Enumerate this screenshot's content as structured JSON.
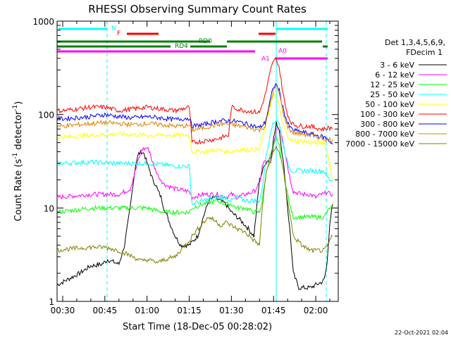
{
  "chart_data": {
    "type": "line",
    "title": "RHESSI Observing Summary Count Rates",
    "xlabel": "Start Time (18-Dec-05 00:28:02)",
    "ylabel_main": "Count Rate (s",
    "ylabel_sup1": "-1",
    "ylabel_mid": " detector",
    "ylabel_sup2": "-1",
    "ylabel_end": ")",
    "x_range_min": [
      28.0,
      128.0
    ],
    "y_log": true,
    "y_range": [
      1,
      1000
    ],
    "x_ticks": [
      {
        "t": 30,
        "label": "00:30"
      },
      {
        "t": 45,
        "label": "00:45"
      },
      {
        "t": 60,
        "label": "01:00"
      },
      {
        "t": 75,
        "label": "01:15"
      },
      {
        "t": 90,
        "label": "01:30"
      },
      {
        "t": 105,
        "label": "01:45"
      },
      {
        "t": 120,
        "label": "02:00"
      }
    ],
    "y_ticks": [
      {
        "v": 1,
        "label": "1"
      },
      {
        "v": 10,
        "label": "10"
      },
      {
        "v": 100,
        "label": "100"
      },
      {
        "v": 1000,
        "label": "1000"
      }
    ],
    "legend": {
      "header1": "Det 1,3,4,5,6,9,",
      "header2": "FDecim 1",
      "position": "right"
    },
    "series": [
      {
        "name": "3 - 6 keV",
        "color": "#000000",
        "x": [
          28,
          36,
          40,
          44,
          46,
          50,
          52,
          54,
          55,
          56,
          57,
          58,
          59,
          60,
          61,
          62,
          63,
          64,
          65,
          66,
          68,
          70,
          72,
          75,
          78,
          80,
          82,
          84,
          86,
          88,
          90,
          92,
          94,
          96,
          98,
          100,
          102,
          104,
          105,
          106,
          107,
          108,
          109,
          110,
          111,
          112,
          114,
          116,
          118,
          120,
          122,
          123,
          124,
          125,
          126
        ],
        "y": [
          1.5,
          2,
          2.4,
          2.5,
          2.8,
          2.5,
          4,
          10,
          18,
          30,
          38,
          40,
          38,
          30,
          25,
          20,
          18,
          15,
          13,
          10,
          7,
          5,
          4,
          4,
          5,
          8,
          12,
          13,
          12,
          11,
          9,
          8,
          7,
          6,
          5,
          20,
          30,
          35,
          55,
          80,
          70,
          40,
          22,
          10,
          5,
          2,
          1.4,
          1.4,
          1.4,
          1.5,
          1.6,
          1.7,
          2.5,
          7,
          11
        ]
      },
      {
        "name": "6 - 12 keV",
        "color": "#ff00ff",
        "x": [
          28,
          40,
          45,
          50,
          54,
          56,
          58,
          60,
          61,
          62,
          64,
          66,
          70,
          75,
          76,
          80,
          85,
          88,
          90,
          92,
          95,
          98,
          100,
          101,
          102,
          103,
          104,
          105,
          106,
          107,
          108,
          109,
          110,
          111,
          112,
          115,
          118,
          120,
          122,
          123,
          124,
          125,
          126
        ],
        "y": [
          13,
          14,
          14,
          14,
          16,
          26,
          42,
          44,
          40,
          30,
          22,
          18,
          16,
          15,
          13,
          14,
          14,
          13,
          14,
          13,
          14,
          15,
          18,
          28,
          32,
          30,
          32,
          45,
          70,
          72,
          60,
          40,
          28,
          20,
          15,
          14,
          14,
          13,
          14,
          14,
          15,
          14,
          14
        ]
      },
      {
        "name": "12 - 25 keV",
        "color": "#00ff00",
        "x": [
          28,
          40,
          50,
          60,
          66,
          70,
          75,
          76,
          80,
          85,
          88,
          90,
          92,
          95,
          98,
          100,
          101,
          102,
          103,
          104,
          105,
          106,
          107,
          108,
          109,
          110,
          111,
          112,
          115,
          118,
          120,
          122,
          123,
          124,
          125,
          126
        ],
        "y": [
          9,
          10,
          10,
          10,
          9,
          9,
          9,
          10,
          11,
          12,
          11,
          11,
          10,
          10,
          9,
          9,
          12,
          20,
          30,
          38,
          45,
          55,
          48,
          30,
          20,
          14,
          10,
          8,
          8,
          8,
          8,
          8,
          8,
          9,
          10,
          10
        ]
      },
      {
        "name": "25 - 50 keV",
        "color": "#00ffff",
        "x": [
          28,
          40,
          50,
          60,
          66,
          70,
          75,
          76,
          80,
          85,
          88,
          90,
          92,
          95,
          98,
          100,
          101,
          102,
          103,
          104,
          105,
          106,
          107,
          108,
          109,
          110,
          111,
          112,
          115,
          118,
          120,
          122,
          123,
          124,
          125,
          126
        ],
        "y": [
          30,
          31,
          30,
          30,
          29,
          28,
          28,
          11,
          12,
          13,
          13,
          12,
          13,
          12,
          12,
          12,
          16,
          30,
          45,
          70,
          80,
          90,
          80,
          55,
          40,
          30,
          26,
          25,
          25,
          25,
          25,
          25,
          25,
          22,
          20,
          20
        ]
      },
      {
        "name": "50 - 100 keV",
        "color": "#ffff00",
        "x": [
          28,
          40,
          50,
          60,
          66,
          70,
          75,
          76,
          80,
          85,
          88,
          90,
          92,
          95,
          98,
          100,
          101,
          102,
          103,
          104,
          105,
          106,
          107,
          108,
          109,
          110,
          111,
          112,
          115,
          118,
          120,
          122,
          123,
          124,
          125,
          126
        ],
        "y": [
          57,
          60,
          62,
          60,
          60,
          60,
          60,
          40,
          40,
          42,
          40,
          40,
          42,
          42,
          42,
          42,
          55,
          75,
          100,
          130,
          160,
          150,
          120,
          85,
          70,
          60,
          55,
          52,
          52,
          50,
          50,
          50,
          50,
          40,
          30,
          20
        ]
      },
      {
        "name": "100 - 300 keV",
        "color": "#ff0000",
        "x": [
          28,
          30,
          40,
          45,
          50,
          55,
          60,
          65,
          70,
          75,
          76,
          80,
          85,
          89,
          90,
          92,
          95,
          100,
          102,
          103,
          104,
          105,
          106,
          107,
          108,
          109,
          110,
          111,
          112,
          115,
          118,
          120,
          122,
          123,
          124,
          125,
          126
        ],
        "y": [
          110,
          110,
          120,
          120,
          110,
          115,
          120,
          115,
          110,
          120,
          50,
          52,
          55,
          60,
          120,
          115,
          110,
          105,
          160,
          220,
          300,
          380,
          390,
          320,
          200,
          130,
          100,
          85,
          78,
          75,
          75,
          72,
          70,
          70,
          72,
          72,
          72
        ]
      },
      {
        "name": "300 - 800 keV",
        "color": "#0000ff",
        "x": [
          28,
          30,
          40,
          45,
          50,
          55,
          60,
          65,
          70,
          75,
          76,
          80,
          85,
          88,
          90,
          92,
          95,
          100,
          102,
          103,
          104,
          105,
          106,
          107,
          108,
          109,
          110,
          111,
          112,
          115,
          118,
          120,
          122,
          123,
          124,
          125,
          126
        ],
        "y": [
          90,
          90,
          95,
          100,
          95,
          92,
          95,
          92,
          88,
          92,
          75,
          78,
          85,
          86,
          85,
          84,
          80,
          72,
          82,
          110,
          150,
          200,
          210,
          180,
          130,
          100,
          80,
          72,
          68,
          65,
          62,
          60,
          58,
          57,
          55,
          52,
          48
        ]
      },
      {
        "name": "800 - 7000 keV",
        "color": "#e08000",
        "x": [
          28,
          30,
          40,
          45,
          50,
          55,
          60,
          65,
          70,
          75,
          76,
          80,
          85,
          88,
          90,
          92,
          95,
          100,
          102,
          103,
          104,
          105,
          106,
          107,
          108,
          109,
          110,
          111,
          112,
          115,
          118,
          120,
          122,
          123,
          124,
          125,
          126
        ],
        "y": [
          75,
          75,
          80,
          82,
          80,
          78,
          80,
          78,
          75,
          76,
          68,
          72,
          78,
          80,
          78,
          76,
          74,
          68,
          75,
          100,
          140,
          180,
          200,
          170,
          120,
          90,
          74,
          68,
          64,
          62,
          60,
          58,
          56,
          55,
          54,
          54,
          54
        ]
      },
      {
        "name": "7000 - 15000 keV",
        "color": "#808000",
        "x": [
          28,
          30,
          40,
          45,
          50,
          55,
          58,
          60,
          64,
          66,
          70,
          75,
          76,
          80,
          82,
          85,
          86,
          88,
          90,
          92,
          95,
          98,
          100,
          101,
          102,
          103,
          104,
          105,
          106,
          107,
          108,
          109,
          110,
          111,
          112,
          115,
          118,
          120,
          122,
          123,
          124,
          125,
          126
        ],
        "y": [
          3.5,
          3.6,
          3.8,
          3.8,
          3.5,
          3,
          2.7,
          2.8,
          2.6,
          2.8,
          3,
          4.5,
          5,
          7,
          8,
          7,
          6.5,
          7,
          6.5,
          6,
          5.5,
          4.5,
          4,
          10,
          20,
          28,
          32,
          40,
          45,
          40,
          30,
          20,
          12,
          8,
          5,
          4,
          3.5,
          3.5,
          3.5,
          3.5,
          3.8,
          4.5,
          5
        ]
      }
    ],
    "attenuator_bars": [
      {
        "label": "N",
        "color": "#00ffff"
      },
      {
        "label": "F",
        "color": "#ff0000"
      },
      {
        "label": "RD0",
        "color": "#008000"
      },
      {
        "label": "RD4",
        "color": "#008000"
      },
      {
        "label": "A0",
        "color": "#ff00ff"
      },
      {
        "label": "A1",
        "color": "#ff00ff"
      }
    ],
    "timestamp": "22-Oct-2021 02:04"
  }
}
